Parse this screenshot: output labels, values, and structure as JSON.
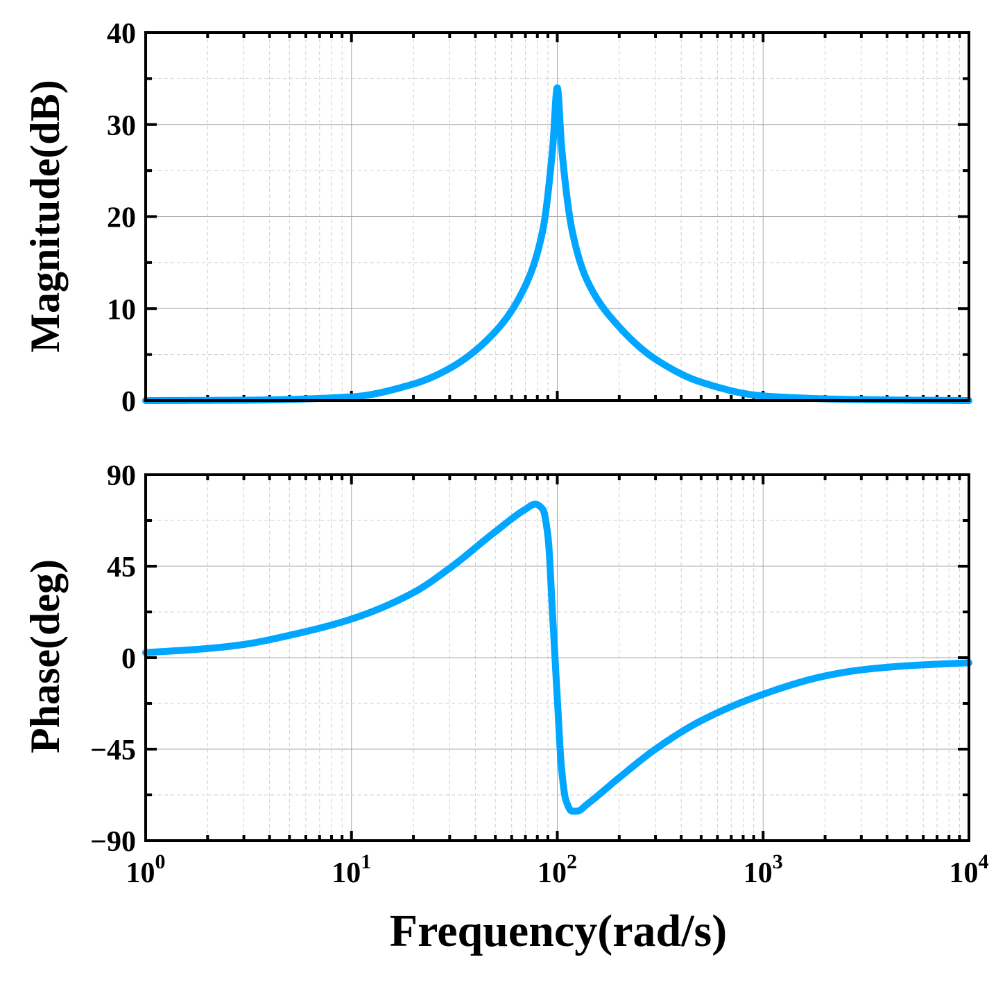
{
  "chart_data": [
    {
      "type": "line",
      "panel": "magnitude",
      "ylabel": "Magnitude(dB)",
      "xscale": "log",
      "xlim": [
        1,
        10000
      ],
      "ylim": [
        0,
        40
      ],
      "yticks": [
        0,
        10,
        20,
        30,
        40
      ],
      "ytick_labels": [
        "0",
        "10",
        "20",
        "30",
        "40"
      ],
      "grid": true,
      "color": "#00a6ff",
      "series": [
        {
          "name": "Magnitude",
          "x": [
            1,
            3,
            10,
            20,
            30,
            50,
            70,
            85,
            95,
            100,
            105,
            118,
            140,
            200,
            300,
            500,
            1000,
            3000,
            10000
          ],
          "y": [
            0.0,
            0.04,
            0.4,
            1.8,
            3.5,
            7.5,
            12.5,
            18.5,
            27.5,
            34.0,
            27.5,
            18.5,
            13.0,
            8.0,
            4.5,
            2.0,
            0.5,
            0.1,
            0.0
          ]
        }
      ]
    },
    {
      "type": "line",
      "panel": "phase",
      "ylabel": "Phase(deg)",
      "xlabel": "Frequency(rad/s)",
      "xscale": "log",
      "xlim": [
        1,
        10000
      ],
      "ylim": [
        -90,
        90
      ],
      "yticks": [
        -90,
        -45,
        0,
        45,
        90
      ],
      "ytick_labels": [
        "−90",
        "−45",
        "0",
        "45",
        "90"
      ],
      "xtick_base": [
        "10",
        "10",
        "10",
        "10",
        "10"
      ],
      "xtick_exp": [
        "0",
        "1",
        "2",
        "3",
        "4"
      ],
      "grid": true,
      "color": "#00a6ff",
      "series": [
        {
          "name": "Phase",
          "x": [
            1,
            2,
            3,
            5,
            10,
            20,
            30,
            50,
            70,
            78,
            85,
            90,
            95,
            100,
            105,
            110,
            118,
            125,
            140,
            200,
            300,
            500,
            1000,
            2000,
            3000,
            5000,
            10000
          ],
          "y": [
            2.5,
            4.5,
            6.5,
            11.0,
            19.0,
            32.0,
            44.0,
            62.0,
            73.0,
            75.5,
            73.0,
            60.0,
            20.0,
            -20.0,
            -55.0,
            -70.0,
            -75.5,
            -75.5,
            -72.0,
            -59.0,
            -45.0,
            -31.0,
            -18.0,
            -9.0,
            -6.0,
            -4.0,
            -2.5
          ]
        }
      ]
    }
  ]
}
